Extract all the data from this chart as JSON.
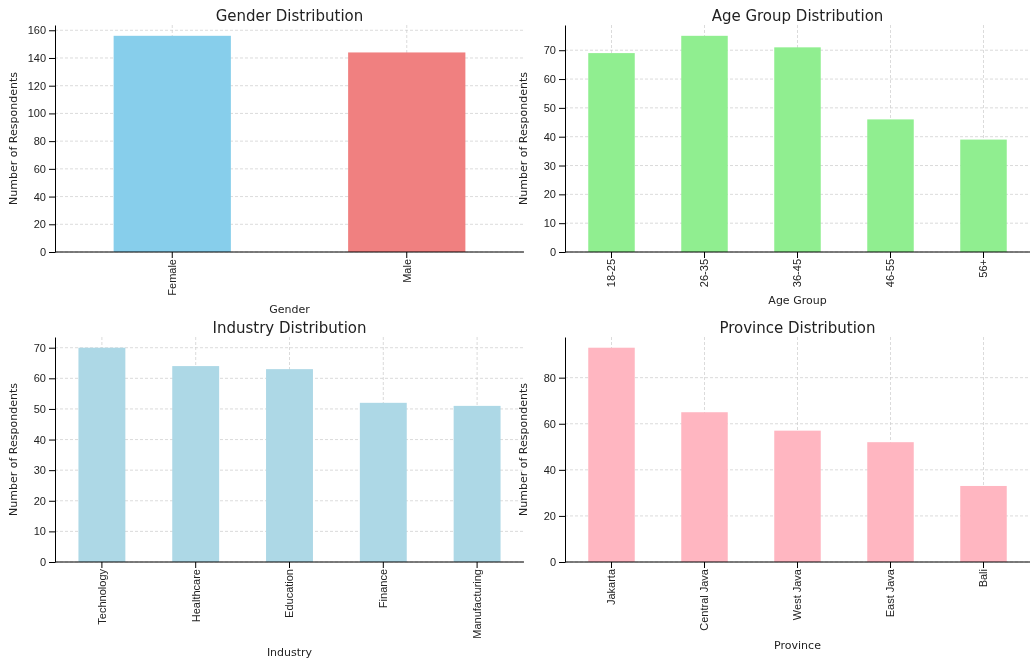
{
  "chart_data": [
    {
      "type": "bar",
      "title": "Gender Distribution",
      "xlabel": "Gender",
      "ylabel": "Number of Respondents",
      "categories": [
        "Female",
        "Male"
      ],
      "values": [
        156,
        144
      ],
      "colors": [
        "#87ceeb",
        "#f08080"
      ],
      "ylim": [
        0,
        163.8
      ],
      "yticks": [
        0,
        20,
        40,
        60,
        80,
        100,
        120,
        140,
        160
      ],
      "grid": true
    },
    {
      "type": "bar",
      "title": "Age Group Distribution",
      "xlabel": "Age Group",
      "ylabel": "Number of Respondents",
      "categories": [
        "18-25",
        "26-35",
        "36-45",
        "46-55",
        "56+"
      ],
      "values": [
        69,
        75,
        71,
        46,
        39
      ],
      "color": "#90ee90",
      "ylim": [
        0,
        78.75
      ],
      "yticks": [
        0,
        10,
        20,
        30,
        40,
        50,
        60,
        70
      ],
      "grid": true
    },
    {
      "type": "bar",
      "title": "Industry Distribution",
      "xlabel": "Industry",
      "ylabel": "Number of Respondents",
      "categories": [
        "Technology",
        "Healthcare",
        "Education",
        "Finance",
        "Manufacturing"
      ],
      "values": [
        70,
        64,
        63,
        52,
        51
      ],
      "color": "#add8e6",
      "ylim": [
        0,
        73.5
      ],
      "yticks": [
        0,
        10,
        20,
        30,
        40,
        50,
        60,
        70
      ],
      "grid": true
    },
    {
      "type": "bar",
      "title": "Province Distribution",
      "xlabel": "Province",
      "ylabel": "Number of Respondents",
      "categories": [
        "Jakarta",
        "Central Java",
        "West Java",
        "East Java",
        "Bali"
      ],
      "values": [
        93,
        65,
        57,
        52,
        33
      ],
      "color": "#ffb6c1",
      "ylim": [
        0,
        97.65
      ],
      "yticks": [
        0,
        20,
        40,
        60,
        80
      ],
      "grid": true
    }
  ]
}
